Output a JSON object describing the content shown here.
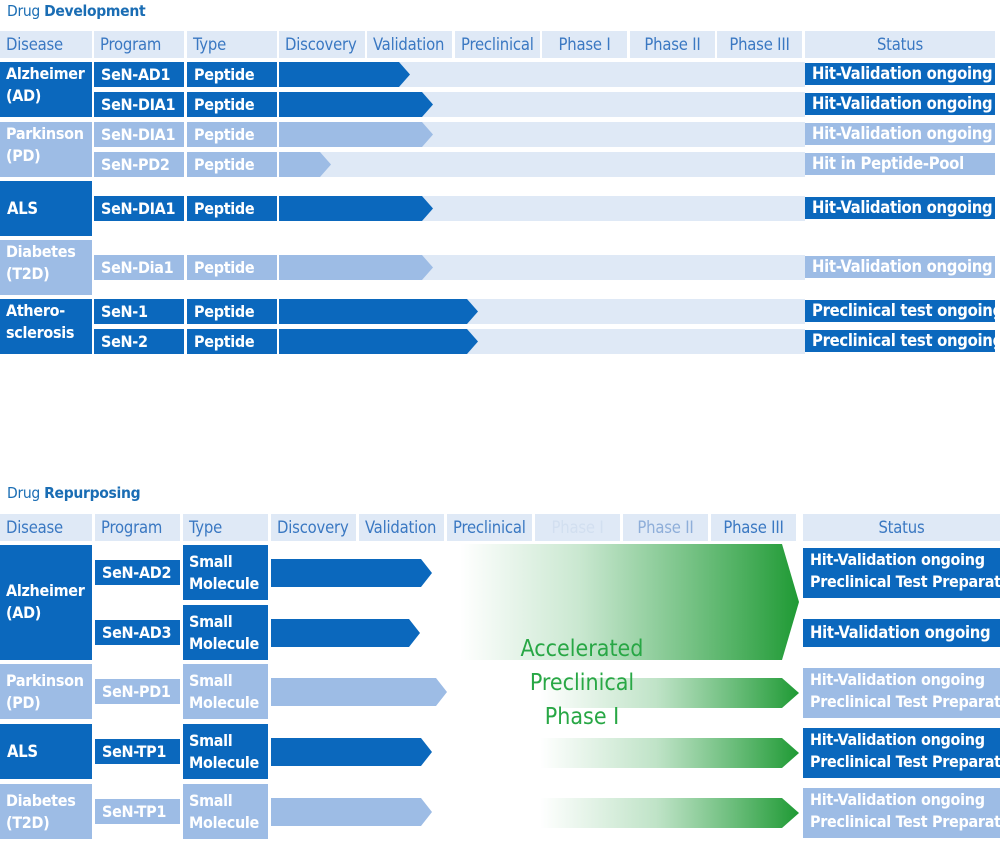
{
  "development": {
    "title_prefix": "Drug ",
    "title_bold": "Development",
    "headers": {
      "disease": "Disease",
      "program": "Program",
      "type": "Type",
      "discovery": "Discovery",
      "validation": "Validation",
      "preclinical": "Preclinical",
      "phase1": "Phase I",
      "phase2": "Phase II",
      "phase3": "Phase III",
      "status": "Status"
    },
    "diseases": [
      {
        "line1": "Alzheimer",
        "line2": "(AD)"
      },
      {
        "line1": "Parkinson",
        "line2": "(PD)"
      },
      {
        "line1": "ALS",
        "line2": ""
      },
      {
        "line1": "Diabetes",
        "line2": "(T2D)"
      },
      {
        "line1": "Athero-",
        "line2": "sclerosis"
      }
    ],
    "rows": [
      {
        "program": "SeN-AD1",
        "type": "Peptide",
        "status": "Hit-Validation ongoing",
        "stage": "validation"
      },
      {
        "program": "SeN-DIA1",
        "type": "Peptide",
        "status": "Hit-Validation ongoing",
        "stage": "validation"
      },
      {
        "program": "SeN-DIA1",
        "type": "Peptide",
        "status": "Hit-Validation ongoing",
        "stage": "validation"
      },
      {
        "program": "SeN-PD2",
        "type": "Peptide",
        "status": "Hit in Peptide-Pool",
        "stage": "discovery"
      },
      {
        "program": "SeN-DIA1",
        "type": "Peptide",
        "status": "Hit-Validation ongoing",
        "stage": "validation"
      },
      {
        "program": "SeN-Dia1",
        "type": "Peptide",
        "status": "Hit-Validation ongoing",
        "stage": "validation"
      },
      {
        "program": "SeN-1",
        "type": "Peptide",
        "status": "Preclinical test ongoing",
        "stage": "preclinical"
      },
      {
        "program": "SeN-2",
        "type": "Peptide",
        "status": "Preclinical test ongoing",
        "stage": "preclinical"
      }
    ]
  },
  "repurposing": {
    "title_prefix": "Drug ",
    "title_bold": "Repurposing",
    "headers": {
      "disease": "Disease",
      "program": "Program",
      "type": "Type",
      "discovery": "Discovery",
      "validation": "Validation",
      "preclinical": "Preclinical",
      "phase1": "Phase I",
      "phase2": "Phase II",
      "phase3": "Phase III",
      "status": "Status"
    },
    "diseases": [
      {
        "line1": "Alzheimer",
        "line2": "(AD)"
      },
      {
        "line1": "Parkinson",
        "line2": "(PD)"
      },
      {
        "line1": "ALS",
        "line2": ""
      },
      {
        "line1": "Diabetes",
        "line2": "(T2D)"
      }
    ],
    "rows": [
      {
        "program": "SeN-AD2",
        "type1": "Small",
        "type2": "Molecule",
        "status1": "Hit-Validation ongoing",
        "status2": "Preclinical Test Preparation"
      },
      {
        "program": "SeN-AD3",
        "type1": "Small",
        "type2": "Molecule",
        "status1": "Hit-Validation ongoing",
        "status2": ""
      },
      {
        "program": "SeN-PD1",
        "type1": "Small",
        "type2": "Molecule",
        "status1": "Hit-Validation ongoing",
        "status2": "Preclinical Test Preparation"
      },
      {
        "program": "SeN-TP1",
        "type1": "Small",
        "type2": "Molecule",
        "status1": "Hit-Validation ongoing",
        "status2": "Preclinical Test Preparation"
      },
      {
        "program": "SeN-TP1",
        "type1": "Small",
        "type2": "Molecule",
        "status1": "Hit-Validation ongoing",
        "status2": "Preclinical Test Preparation"
      }
    ],
    "accelerated": {
      "line1": "Accelerated",
      "line2": "Preclinical",
      "line3": "Phase I"
    }
  },
  "colors": {
    "dark_blue": "#0b68bd",
    "light_blue": "#9dbce5",
    "track": "#dfe9f6",
    "header_text": "#3a78c2",
    "green": "#2ba245"
  }
}
